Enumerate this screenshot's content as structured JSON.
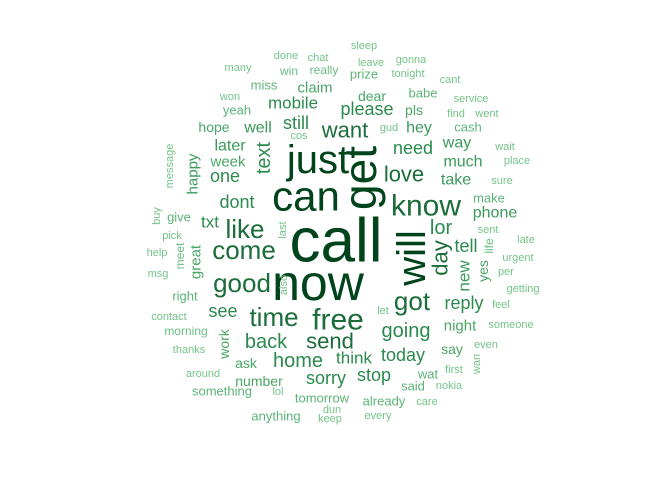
{
  "words": [
    {
      "t": "call",
      "s": 62,
      "c": "#00441b"
    },
    {
      "t": "now",
      "s": 50,
      "c": "#00441b"
    },
    {
      "t": "get",
      "s": 46,
      "c": "#00441b"
    },
    {
      "t": "can",
      "s": 42,
      "c": "#00441b"
    },
    {
      "t": "just",
      "s": 40,
      "c": "#00441b"
    },
    {
      "t": "will",
      "s": 40,
      "c": "#00441b"
    },
    {
      "t": "know",
      "s": 30,
      "c": "#1b6d3a"
    },
    {
      "t": "free",
      "s": 30,
      "c": "#1b6d3a"
    },
    {
      "t": "got",
      "s": 26,
      "c": "#1b6d3a"
    },
    {
      "t": "time",
      "s": 26,
      "c": "#1b6d3a"
    },
    {
      "t": "good",
      "s": 26,
      "c": "#1b6d3a"
    },
    {
      "t": "come",
      "s": 26,
      "c": "#1b6d3a"
    },
    {
      "t": "like",
      "s": 26,
      "c": "#1b6d3a"
    },
    {
      "t": "love",
      "s": 22,
      "c": "#1b6d3a"
    },
    {
      "t": "want",
      "s": 22,
      "c": "#1b6d3a"
    },
    {
      "t": "send",
      "s": 22,
      "c": "#1b6d3a"
    },
    {
      "t": "back",
      "s": 20,
      "c": "#2b8a4e"
    },
    {
      "t": "day",
      "s": 22,
      "c": "#1b6d3a"
    },
    {
      "t": "text",
      "s": 20,
      "c": "#2b8a4e"
    },
    {
      "t": "going",
      "s": 20,
      "c": "#2b8a4e"
    },
    {
      "t": "lor",
      "s": 20,
      "c": "#2b8a4e"
    },
    {
      "t": "home",
      "s": 20,
      "c": "#2b8a4e"
    },
    {
      "t": "still",
      "s": 18,
      "c": "#2b8a4e"
    },
    {
      "t": "need",
      "s": 18,
      "c": "#2b8a4e"
    },
    {
      "t": "dont",
      "s": 18,
      "c": "#2b8a4e"
    },
    {
      "t": "one",
      "s": 18,
      "c": "#2b8a4e"
    },
    {
      "t": "see",
      "s": 18,
      "c": "#2b8a4e"
    },
    {
      "t": "please",
      "s": 18,
      "c": "#2b8a4e"
    },
    {
      "t": "reply",
      "s": 18,
      "c": "#2b8a4e"
    },
    {
      "t": "sorry",
      "s": 18,
      "c": "#2b8a4e"
    },
    {
      "t": "today",
      "s": 18,
      "c": "#2b8a4e"
    },
    {
      "t": "stop",
      "s": 18,
      "c": "#2b8a4e"
    },
    {
      "t": "tell",
      "s": 18,
      "c": "#2b8a4e"
    },
    {
      "t": "think",
      "s": 17,
      "c": "#2b8a4e"
    },
    {
      "t": "mobile",
      "s": 17,
      "c": "#2b8a4e"
    },
    {
      "t": "txt",
      "s": 17,
      "c": "#2b8a4e"
    },
    {
      "t": "new",
      "s": 17,
      "c": "#3a9a5b"
    },
    {
      "t": "phone",
      "s": 16,
      "c": "#3a9a5b"
    },
    {
      "t": "take",
      "s": 16,
      "c": "#3a9a5b"
    },
    {
      "t": "much",
      "s": 16,
      "c": "#3a9a5b"
    },
    {
      "t": "way",
      "s": 16,
      "c": "#3a9a5b"
    },
    {
      "t": "hey",
      "s": 16,
      "c": "#3a9a5b"
    },
    {
      "t": "well",
      "s": 16,
      "c": "#3a9a5b"
    },
    {
      "t": "later",
      "s": 16,
      "c": "#3a9a5b"
    },
    {
      "t": "happy",
      "s": 15,
      "c": "#3a9a5b"
    },
    {
      "t": "night",
      "s": 15,
      "c": "#4aa665"
    },
    {
      "t": "great",
      "s": 15,
      "c": "#4aa665"
    },
    {
      "t": "claim",
      "s": 15,
      "c": "#4aa665"
    },
    {
      "t": "week",
      "s": 15,
      "c": "#4aa665"
    },
    {
      "t": "hope",
      "s": 14,
      "c": "#4aa665"
    },
    {
      "t": "work",
      "s": 14,
      "c": "#4aa665"
    },
    {
      "t": "say",
      "s": 14,
      "c": "#4aa665"
    },
    {
      "t": "ask",
      "s": 14,
      "c": "#4aa665"
    },
    {
      "t": "yes",
      "s": 14,
      "c": "#4aa665"
    },
    {
      "t": "number",
      "s": 14,
      "c": "#4aa665"
    },
    {
      "t": "dear",
      "s": 14,
      "c": "#4aa665"
    },
    {
      "t": "pls",
      "s": 14,
      "c": "#4aa665"
    },
    {
      "t": "cash",
      "s": 13,
      "c": "#5cb476"
    },
    {
      "t": "make",
      "s": 13,
      "c": "#5cb476"
    },
    {
      "t": "give",
      "s": 13,
      "c": "#5cb476"
    },
    {
      "t": "miss",
      "s": 13,
      "c": "#5cb476"
    },
    {
      "t": "yeah",
      "s": 13,
      "c": "#5cb476"
    },
    {
      "t": "wat",
      "s": 13,
      "c": "#5cb476"
    },
    {
      "t": "said",
      "s": 13,
      "c": "#5cb476"
    },
    {
      "t": "tomorrow",
      "s": 13,
      "c": "#5cb476"
    },
    {
      "t": "already",
      "s": 13,
      "c": "#5cb476"
    },
    {
      "t": "something",
      "s": 13,
      "c": "#5cb476"
    },
    {
      "t": "anything",
      "s": 13,
      "c": "#5cb476"
    },
    {
      "t": "right",
      "s": 13,
      "c": "#5cb476"
    },
    {
      "t": "babe",
      "s": 13,
      "c": "#5cb476"
    },
    {
      "t": "prize",
      "s": 13,
      "c": "#5cb476"
    },
    {
      "t": "meet",
      "s": 12,
      "c": "#6cbf84"
    },
    {
      "t": "life",
      "s": 12,
      "c": "#6cbf84"
    },
    {
      "t": "morning",
      "s": 12,
      "c": "#6cbf84"
    },
    {
      "t": "win",
      "s": 12,
      "c": "#6cbf84"
    },
    {
      "t": "really",
      "s": 12,
      "c": "#6cbf84"
    },
    {
      "t": "won",
      "s": 11,
      "c": "#74c489"
    },
    {
      "t": "service",
      "s": 11,
      "c": "#74c489"
    },
    {
      "t": "find",
      "s": 11,
      "c": "#74c489"
    },
    {
      "t": "went",
      "s": 11,
      "c": "#74c489"
    },
    {
      "t": "wait",
      "s": 11,
      "c": "#74c489"
    },
    {
      "t": "place",
      "s": 11,
      "c": "#74c489"
    },
    {
      "t": "sure",
      "s": 11,
      "c": "#74c489"
    },
    {
      "t": "sent",
      "s": 11,
      "c": "#74c489"
    },
    {
      "t": "late",
      "s": 11,
      "c": "#74c489"
    },
    {
      "t": "urgent",
      "s": 11,
      "c": "#74c489"
    },
    {
      "t": "per",
      "s": 11,
      "c": "#74c489"
    },
    {
      "t": "getting",
      "s": 11,
      "c": "#74c489"
    },
    {
      "t": "feel",
      "s": 11,
      "c": "#74c489"
    },
    {
      "t": "someone",
      "s": 11,
      "c": "#74c489"
    },
    {
      "t": "even",
      "s": 11,
      "c": "#74c489"
    },
    {
      "t": "first",
      "s": 11,
      "c": "#74c489"
    },
    {
      "t": "wan",
      "s": 11,
      "c": "#74c489"
    },
    {
      "t": "nokia",
      "s": 11,
      "c": "#74c489"
    },
    {
      "t": "care",
      "s": 11,
      "c": "#74c489"
    },
    {
      "t": "every",
      "s": 11,
      "c": "#74c489"
    },
    {
      "t": "keep",
      "s": 11,
      "c": "#74c489"
    },
    {
      "t": "dun",
      "s": 11,
      "c": "#74c489"
    },
    {
      "t": "lol",
      "s": 11,
      "c": "#74c489"
    },
    {
      "t": "around",
      "s": 11,
      "c": "#74c489"
    },
    {
      "t": "thanks",
      "s": 11,
      "c": "#74c489"
    },
    {
      "t": "contact",
      "s": 11,
      "c": "#74c489"
    },
    {
      "t": "msg",
      "s": 11,
      "c": "#74c489"
    },
    {
      "t": "help",
      "s": 11,
      "c": "#74c489"
    },
    {
      "t": "pick",
      "s": 11,
      "c": "#74c489"
    },
    {
      "t": "buy",
      "s": 11,
      "c": "#74c489"
    },
    {
      "t": "message",
      "s": 11,
      "c": "#74c489"
    },
    {
      "t": "also",
      "s": 11,
      "c": "#74c489"
    },
    {
      "t": "last",
      "s": 11,
      "c": "#74c489"
    },
    {
      "t": "let",
      "s": 11,
      "c": "#74c489"
    },
    {
      "t": "cos",
      "s": 11,
      "c": "#74c489"
    },
    {
      "t": "gud",
      "s": 11,
      "c": "#74c489"
    },
    {
      "t": "many",
      "s": 11,
      "c": "#74c489"
    },
    {
      "t": "done",
      "s": 11,
      "c": "#74c489"
    },
    {
      "t": "chat",
      "s": 11,
      "c": "#74c489"
    },
    {
      "t": "sleep",
      "s": 11,
      "c": "#74c489"
    },
    {
      "t": "leave",
      "s": 11,
      "c": "#74c489"
    },
    {
      "t": "gonna",
      "s": 11,
      "c": "#74c489"
    },
    {
      "t": "tonight",
      "s": 11,
      "c": "#74c489"
    },
    {
      "t": "cant",
      "s": 11,
      "c": "#74c489"
    }
  ]
}
